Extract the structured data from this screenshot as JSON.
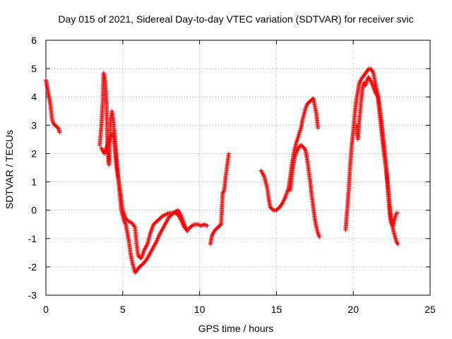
{
  "chart_data": {
    "type": "scatter",
    "title": "Day 015 of 2021, Sidereal Day-to-day VTEC variation (SDTVAR) for receiver svic",
    "xlabel": "GPS time / hours",
    "ylabel": "SDTVAR / TECUs",
    "xlim": [
      0,
      25
    ],
    "ylim": [
      -3,
      6
    ],
    "xticks": [
      "0",
      "5",
      "10",
      "15",
      "20",
      "25"
    ],
    "yticks": [
      "-3",
      "-2",
      "-1",
      "0",
      "1",
      "2",
      "3",
      "4",
      "5",
      "6"
    ],
    "grid": true,
    "marker": "+",
    "color": "#ff0000",
    "series": [
      {
        "name": "SDTVAR",
        "segments": [
          [
            [
              0.0,
              4.6
            ],
            [
              0.1,
              4.3
            ],
            [
              0.2,
              4.0
            ],
            [
              0.3,
              3.7
            ],
            [
              0.4,
              3.2
            ],
            [
              0.5,
              3.05
            ],
            [
              0.6,
              3.0
            ],
            [
              0.7,
              2.95
            ],
            [
              0.8,
              2.9
            ],
            [
              0.9,
              2.75
            ]
          ],
          [
            [
              3.5,
              2.3
            ],
            [
              3.6,
              2.9
            ],
            [
              3.7,
              3.8
            ],
            [
              3.75,
              4.85
            ],
            [
              3.85,
              4.6
            ],
            [
              3.95,
              3.7
            ],
            [
              4.0,
              2.2
            ],
            [
              4.05,
              1.9
            ],
            [
              4.1,
              1.6
            ],
            [
              4.15,
              2.2
            ],
            [
              4.2,
              3.1
            ],
            [
              4.3,
              3.5
            ],
            [
              4.4,
              3.1
            ],
            [
              4.5,
              2.5
            ],
            [
              4.6,
              1.8
            ],
            [
              4.7,
              1.2
            ],
            [
              4.8,
              0.6
            ],
            [
              4.9,
              0.0
            ],
            [
              5.0,
              -0.2
            ],
            [
              5.1,
              -0.4
            ],
            [
              5.2,
              -0.5
            ],
            [
              5.3,
              -0.8
            ],
            [
              5.4,
              -1.1
            ],
            [
              5.5,
              -1.5
            ],
            [
              5.6,
              -1.8
            ],
            [
              5.7,
              -2.0
            ],
            [
              5.8,
              -2.2
            ],
            [
              5.9,
              -2.15
            ],
            [
              6.0,
              -2.05
            ],
            [
              6.2,
              -1.95
            ],
            [
              6.4,
              -1.85
            ],
            [
              6.6,
              -1.7
            ],
            [
              6.8,
              -1.5
            ],
            [
              7.0,
              -1.3
            ],
            [
              7.2,
              -1.1
            ],
            [
              7.4,
              -0.85
            ],
            [
              7.6,
              -0.65
            ],
            [
              7.8,
              -0.45
            ],
            [
              8.0,
              -0.25
            ],
            [
              8.2,
              -0.15
            ],
            [
              8.4,
              -0.05
            ],
            [
              8.6,
              0.0
            ],
            [
              8.8,
              -0.2
            ],
            [
              9.0,
              -0.5
            ],
            [
              9.2,
              -0.75
            ]
          ],
          [
            [
              3.6,
              2.2
            ],
            [
              3.8,
              2.0
            ],
            [
              4.0,
              2.3
            ],
            [
              4.2,
              2.6
            ],
            [
              4.4,
              2.7
            ],
            [
              4.6,
              1.5
            ],
            [
              4.8,
              0.8
            ],
            [
              5.0,
              0.0
            ],
            [
              5.2,
              -0.3
            ],
            [
              5.4,
              -0.4
            ],
            [
              5.6,
              -0.45
            ],
            [
              5.8,
              -0.6
            ],
            [
              5.9,
              -1.2
            ],
            [
              6.0,
              -1.6
            ],
            [
              6.2,
              -1.7
            ],
            [
              6.4,
              -1.4
            ],
            [
              6.6,
              -1.2
            ],
            [
              6.8,
              -0.8
            ],
            [
              7.0,
              -0.5
            ],
            [
              7.2,
              -0.4
            ],
            [
              7.4,
              -0.3
            ],
            [
              7.6,
              -0.2
            ],
            [
              7.8,
              -0.15
            ],
            [
              8.0,
              -0.1
            ],
            [
              8.2,
              -0.1
            ],
            [
              8.4,
              -0.1
            ],
            [
              8.6,
              -0.15
            ],
            [
              8.8,
              -0.35
            ],
            [
              9.0,
              -0.6
            ],
            [
              9.2,
              -0.7
            ]
          ],
          [
            [
              9.3,
              -0.65
            ],
            [
              9.5,
              -0.55
            ],
            [
              9.7,
              -0.5
            ],
            [
              9.9,
              -0.5
            ],
            [
              10.1,
              -0.55
            ],
            [
              10.3,
              -0.5
            ],
            [
              10.5,
              -0.55
            ]
          ],
          [
            [
              10.7,
              -1.2
            ],
            [
              10.8,
              -0.9
            ],
            [
              11.0,
              -0.7
            ],
            [
              11.2,
              -0.6
            ],
            [
              11.4,
              -0.5
            ],
            [
              11.5,
              0.6
            ],
            [
              11.6,
              0.7
            ],
            [
              11.7,
              1.2
            ],
            [
              11.8,
              1.6
            ],
            [
              11.9,
              2.0
            ]
          ],
          [
            [
              14.0,
              1.4
            ],
            [
              14.2,
              1.2
            ],
            [
              14.4,
              0.8
            ],
            [
              14.5,
              0.4
            ],
            [
              14.6,
              0.1
            ],
            [
              14.8,
              0.0
            ],
            [
              15.0,
              0.0
            ],
            [
              15.2,
              0.1
            ],
            [
              15.4,
              0.25
            ],
            [
              15.6,
              0.5
            ],
            [
              15.8,
              0.8
            ],
            [
              15.9,
              1.2
            ],
            [
              16.0,
              1.6
            ],
            [
              16.1,
              1.9
            ],
            [
              16.2,
              2.2
            ],
            [
              16.3,
              2.4
            ],
            [
              16.4,
              2.55
            ],
            [
              16.5,
              2.75
            ],
            [
              16.6,
              2.9
            ],
            [
              16.7,
              3.2
            ],
            [
              16.8,
              3.4
            ],
            [
              16.9,
              3.6
            ],
            [
              17.0,
              3.75
            ],
            [
              17.2,
              3.85
            ],
            [
              17.4,
              3.95
            ],
            [
              17.6,
              3.4
            ],
            [
              17.7,
              2.9
            ]
          ],
          [
            [
              15.9,
              0.7
            ],
            [
              16.0,
              1.2
            ],
            [
              16.1,
              1.6
            ],
            [
              16.2,
              1.9
            ],
            [
              16.3,
              2.05
            ],
            [
              16.4,
              2.15
            ],
            [
              16.5,
              2.25
            ],
            [
              16.6,
              2.3
            ],
            [
              16.7,
              2.25
            ],
            [
              16.8,
              2.2
            ],
            [
              16.9,
              2.1
            ],
            [
              17.0,
              1.8
            ],
            [
              17.1,
              1.4
            ],
            [
              17.2,
              1.0
            ],
            [
              17.3,
              0.5
            ],
            [
              17.4,
              0.1
            ],
            [
              17.5,
              -0.3
            ],
            [
              17.6,
              -0.6
            ],
            [
              17.7,
              -0.8
            ],
            [
              17.8,
              -0.95
            ]
          ],
          [
            [
              19.5,
              -0.7
            ],
            [
              19.6,
              0.0
            ],
            [
              19.7,
              0.7
            ],
            [
              19.8,
              1.6
            ],
            [
              19.9,
              2.3
            ],
            [
              20.0,
              2.8
            ],
            [
              20.1,
              3.4
            ],
            [
              20.2,
              3.9
            ],
            [
              20.3,
              4.2
            ],
            [
              20.4,
              4.5
            ],
            [
              20.5,
              4.6
            ],
            [
              20.6,
              4.7
            ],
            [
              20.7,
              4.75
            ],
            [
              20.8,
              4.85
            ],
            [
              20.9,
              4.9
            ],
            [
              21.0,
              5.0
            ],
            [
              21.1,
              5.0
            ],
            [
              21.2,
              4.95
            ],
            [
              21.3,
              4.85
            ],
            [
              21.4,
              4.6
            ],
            [
              21.5,
              4.3
            ],
            [
              21.6,
              4.1
            ],
            [
              21.7,
              3.7
            ],
            [
              21.8,
              3.3
            ],
            [
              21.9,
              2.8
            ],
            [
              22.0,
              2.3
            ],
            [
              22.1,
              1.8
            ],
            [
              22.2,
              1.2
            ],
            [
              22.3,
              0.6
            ],
            [
              22.4,
              0.0
            ],
            [
              22.5,
              -0.4
            ],
            [
              22.6,
              -0.7
            ],
            [
              22.7,
              -0.9
            ],
            [
              22.8,
              -1.1
            ],
            [
              22.9,
              -1.2
            ]
          ],
          [
            [
              20.2,
              3.0
            ],
            [
              20.3,
              2.5
            ],
            [
              20.4,
              3.2
            ],
            [
              20.5,
              3.8
            ],
            [
              20.6,
              4.3
            ],
            [
              20.7,
              4.5
            ],
            [
              20.8,
              4.4
            ],
            [
              20.9,
              4.6
            ],
            [
              21.0,
              4.7
            ],
            [
              21.2,
              4.5
            ],
            [
              21.4,
              4.2
            ],
            [
              21.6,
              4.0
            ],
            [
              21.7,
              3.5
            ],
            [
              21.8,
              3.0
            ],
            [
              21.9,
              2.5
            ],
            [
              22.0,
              2.0
            ],
            [
              22.1,
              1.6
            ],
            [
              22.2,
              1.1
            ],
            [
              22.3,
              0.4
            ],
            [
              22.4,
              -0.3
            ],
            [
              22.5,
              -0.5
            ],
            [
              22.6,
              -0.55
            ],
            [
              22.7,
              -0.3
            ],
            [
              22.8,
              -0.1
            ],
            [
              22.9,
              -0.1
            ]
          ]
        ]
      }
    ]
  }
}
